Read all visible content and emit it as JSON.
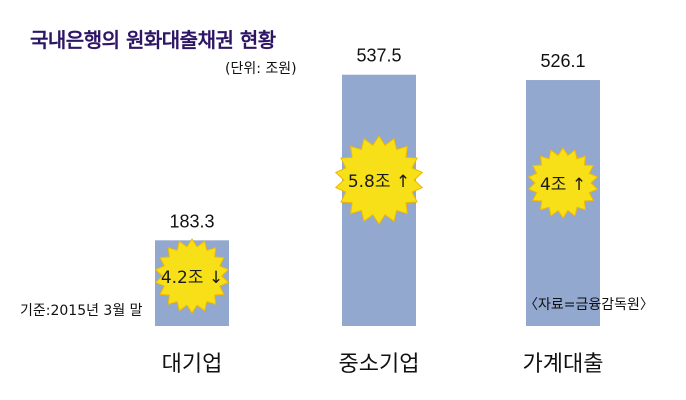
{
  "title": "국내은행의 원화대출채권 현황",
  "unit_note": "(단위: 조원)",
  "basis_note": "기준:2015년 3월 말",
  "source_note": "〈자료=금융감독원〉",
  "colors": {
    "bar": "#92a8cf",
    "burst": "#f7e017",
    "burst_edge": "#f0b800",
    "title": "#2e1566"
  },
  "chart_data": {
    "type": "bar",
    "title": "국내은행의 원화대출채권 현황",
    "xlabel": "",
    "ylabel": "",
    "ylim": [
      0,
      600
    ],
    "grid": false,
    "categories": [
      "대기업",
      "중소기업",
      "가계대출"
    ],
    "values": [
      183.3,
      537.5,
      526.1
    ],
    "value_labels": [
      "183.3",
      "537.5",
      "526.1"
    ],
    "annotations": [
      {
        "category": "대기업",
        "text": "4.2조",
        "direction": "down"
      },
      {
        "category": "중소기업",
        "text": "5.8조",
        "direction": "up"
      },
      {
        "category": "가계대출",
        "text": "4조",
        "direction": "up"
      }
    ]
  }
}
